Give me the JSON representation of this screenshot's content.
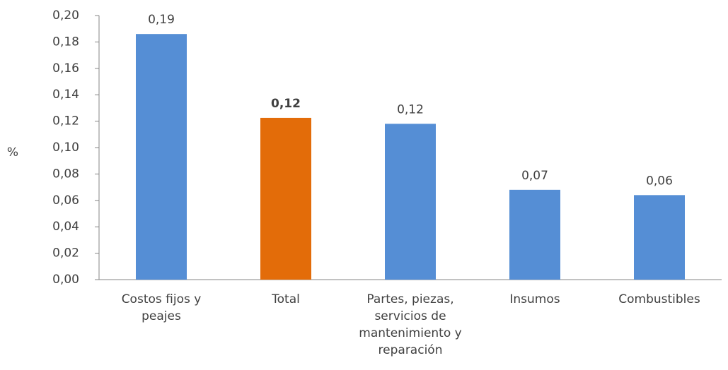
{
  "chart_data": {
    "type": "bar",
    "y_label": "%",
    "categories": [
      "Costos fijos y peajes",
      "Total",
      "Partes, piezas, servicios de mantenimiento y reparación",
      "Insumos",
      "Combustibles"
    ],
    "values": [
      0.186,
      0.1225,
      0.118,
      0.068,
      0.064
    ],
    "value_labels": [
      "0,19",
      "0,12",
      "0,12",
      "0,07",
      "0,06"
    ],
    "bold_value_labels": [
      false,
      true,
      false,
      false,
      false
    ],
    "colors": [
      "#558ed5",
      "#e36c09",
      "#558ed5",
      "#558ed5",
      "#558ed5"
    ],
    "ylim": [
      0,
      0.2
    ],
    "yticks": [
      {
        "value": 0,
        "label": "0,00"
      },
      {
        "value": 0.02,
        "label": "0,02"
      },
      {
        "value": 0.04,
        "label": "0,04"
      },
      {
        "value": 0.06,
        "label": "0,06"
      },
      {
        "value": 0.08,
        "label": "0,08"
      },
      {
        "value": 0.1,
        "label": "0,10"
      },
      {
        "value": 0.12,
        "label": "0,12"
      },
      {
        "value": 0.14,
        "label": "0,14"
      },
      {
        "value": 0.16,
        "label": "0,16"
      },
      {
        "value": 0.18,
        "label": "0,18"
      },
      {
        "value": 0.2,
        "label": "0,20"
      }
    ],
    "grid": false
  }
}
